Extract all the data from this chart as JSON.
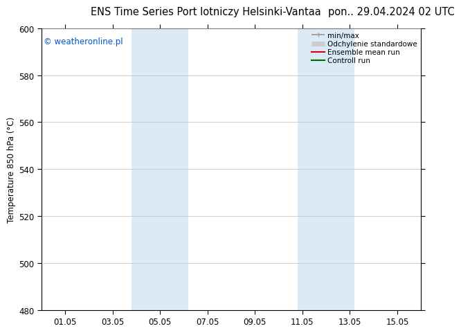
{
  "title_left": "ENS Time Series Port lotniczy Helsinki-Vantaa",
  "title_right": "pon.. 29.04.2024 02 UTC",
  "ylabel": "Temperature 850 hPa (°C)",
  "watermark": "© weatheronline.pl",
  "watermark_color": "#0055cc",
  "ylim": [
    480,
    600
  ],
  "yticks": [
    480,
    500,
    520,
    540,
    560,
    580,
    600
  ],
  "xlim": [
    0,
    16
  ],
  "xtick_positions": [
    1,
    3,
    5,
    7,
    9,
    11,
    13,
    15
  ],
  "xtick_labels": [
    "01.05",
    "03.05",
    "05.05",
    "07.05",
    "09.05",
    "11.05",
    "13.05",
    "15.05"
  ],
  "shaded_regions": [
    {
      "xmin": 3.8,
      "xmax": 6.2
    },
    {
      "xmin": 10.8,
      "xmax": 13.2
    }
  ],
  "shaded_color": "#daeaf7",
  "background_color": "#ffffff",
  "plot_bg_color": "#ffffff",
  "grid_color": "#bbbbbb",
  "legend_items": [
    {
      "label": "min/max",
      "color": "#999999",
      "lw": 1.2
    },
    {
      "label": "Odchylenie standardowe",
      "color": "#cccccc",
      "lw": 5
    },
    {
      "label": "Ensemble mean run",
      "color": "#dd0000",
      "lw": 1.5
    },
    {
      "label": "Controll run",
      "color": "#006600",
      "lw": 1.5
    }
  ],
  "title_fontsize": 10.5,
  "tick_fontsize": 8.5,
  "ylabel_fontsize": 8.5,
  "watermark_fontsize": 8.5,
  "legend_fontsize": 7.5
}
